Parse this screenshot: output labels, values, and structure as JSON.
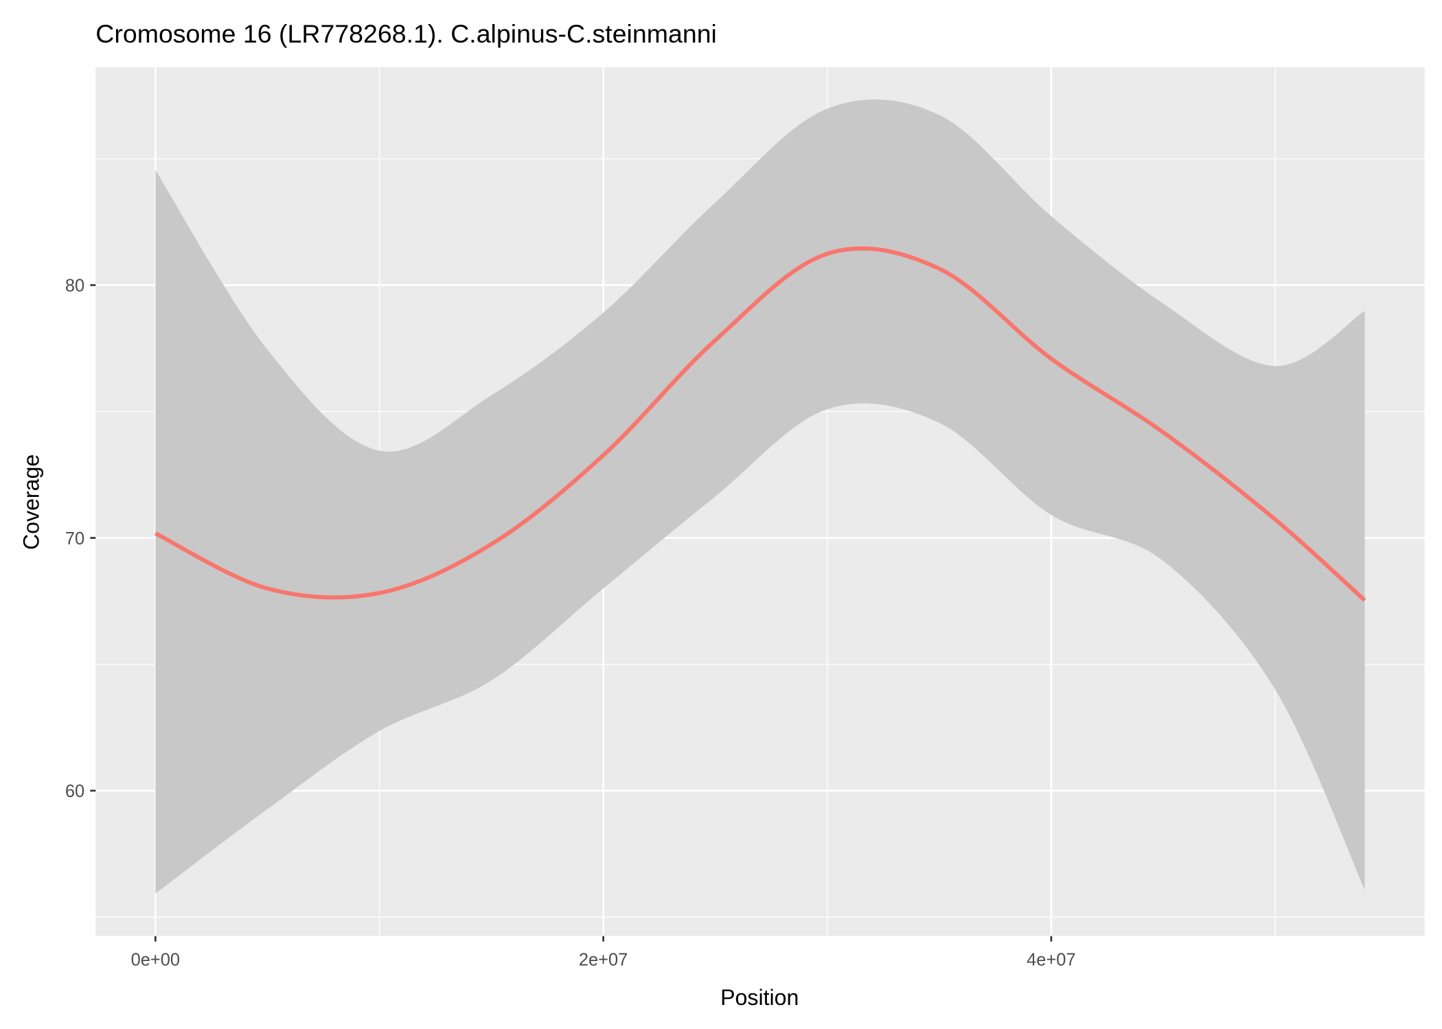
{
  "chart_data": {
    "type": "line",
    "title": "Cromosome 16 (LR778268.1). C.alpinus-C.steinmanni",
    "x_label": "Position",
    "y_label": "Coverage",
    "x": [
      0,
      5000000,
      10000000,
      15000000,
      20000000,
      25000000,
      30000000,
      35000000,
      40000000,
      45000000,
      50000000,
      54000000
    ],
    "values": [
      70.18,
      68.0,
      67.82,
      69.75,
      73.27,
      77.82,
      81.24,
      80.65,
      77.09,
      74.18,
      70.73,
      67.53
    ],
    "ci_lower": [
      55.93,
      59.27,
      62.36,
      64.36,
      68.0,
      71.64,
      75.09,
      74.55,
      70.91,
      69.09,
      64.0,
      56.07
    ],
    "ci_upper": [
      84.55,
      77.45,
      73.45,
      75.64,
      78.91,
      83.27,
      86.98,
      86.73,
      82.73,
      79.27,
      76.8,
      78.98
    ],
    "color": "#f8766d",
    "ci_color": "#c8c8c8",
    "panel_color": "#ebebeb",
    "xlim": [
      -2670000,
      56670000
    ],
    "ylim": [
      54.25,
      88.62
    ],
    "xticks": [
      {
        "value": 0,
        "label": "0e+00"
      },
      {
        "value": 20000000,
        "label": "2e+07"
      },
      {
        "value": 40000000,
        "label": "4e+07"
      }
    ],
    "yticks": [
      60,
      70,
      80
    ],
    "x_minor_grid": [
      10000000,
      30000000,
      50000000
    ],
    "y_minor_grid": [
      55,
      65,
      75,
      85
    ],
    "grid": true
  }
}
